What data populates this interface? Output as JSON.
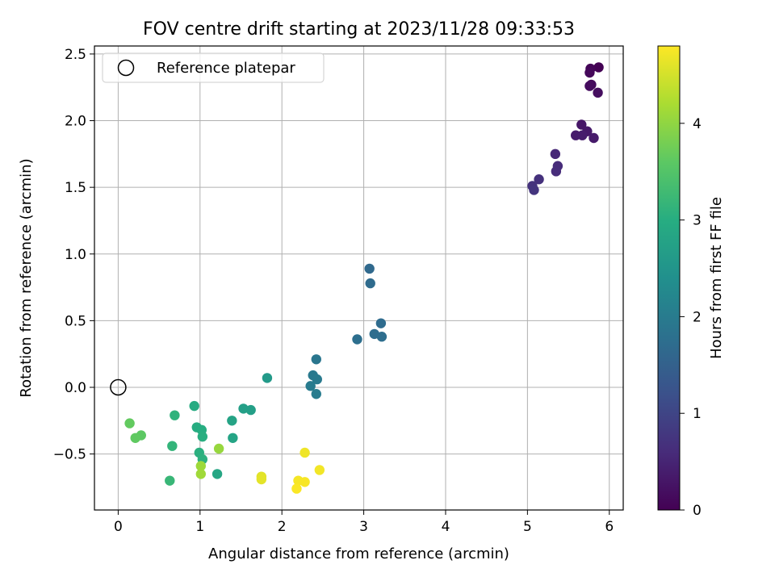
{
  "chart_data": {
    "type": "scatter",
    "title": "FOV centre drift starting at 2023/11/28 09:33:53",
    "xlabel": "Angular distance from reference (arcmin)",
    "ylabel": "Rotation from reference (arcmin)",
    "xlim": [
      -0.29,
      6.17
    ],
    "ylim": [
      -0.92,
      2.56
    ],
    "xticks": [
      0,
      1,
      2,
      3,
      4,
      5,
      6
    ],
    "yticks": [
      -0.5,
      0.0,
      0.5,
      1.0,
      1.5,
      2.0,
      2.5
    ],
    "xtick_labels": [
      "0",
      "1",
      "2",
      "3",
      "4",
      "5",
      "6"
    ],
    "ytick_labels": [
      "−0.5",
      "0.0",
      "0.5",
      "1.0",
      "1.5",
      "2.0",
      "2.5"
    ],
    "grid": true,
    "legend": {
      "placement": "top-left",
      "entries": [
        "Reference platepar"
      ]
    },
    "reference_point": {
      "x": 0.0,
      "y": 0.0
    },
    "colorbar": {
      "label": "Hours from first FF file",
      "colormap": "viridis",
      "range": [
        0,
        4.8
      ],
      "ticks": [
        0,
        1,
        2,
        3,
        4
      ],
      "tick_labels": [
        "0",
        "1",
        "2",
        "3",
        "4"
      ]
    },
    "points": [
      {
        "x": 5.87,
        "y": 2.4,
        "c": 0.0
      },
      {
        "x": 5.77,
        "y": 2.39,
        "c": 0.05
      },
      {
        "x": 5.76,
        "y": 2.36,
        "c": 0.1
      },
      {
        "x": 5.78,
        "y": 2.27,
        "c": 0.12
      },
      {
        "x": 5.76,
        "y": 2.26,
        "c": 0.15
      },
      {
        "x": 5.86,
        "y": 2.21,
        "c": 0.18
      },
      {
        "x": 5.66,
        "y": 1.97,
        "c": 0.3
      },
      {
        "x": 5.73,
        "y": 1.92,
        "c": 0.33
      },
      {
        "x": 5.59,
        "y": 1.89,
        "c": 0.36
      },
      {
        "x": 5.67,
        "y": 1.89,
        "c": 0.38
      },
      {
        "x": 5.81,
        "y": 1.87,
        "c": 0.35
      },
      {
        "x": 5.34,
        "y": 1.75,
        "c": 0.55
      },
      {
        "x": 5.37,
        "y": 1.66,
        "c": 0.6
      },
      {
        "x": 5.35,
        "y": 1.62,
        "c": 0.62
      },
      {
        "x": 5.14,
        "y": 1.56,
        "c": 0.68
      },
      {
        "x": 5.06,
        "y": 1.51,
        "c": 0.72
      },
      {
        "x": 5.08,
        "y": 1.48,
        "c": 0.74
      },
      {
        "x": 3.07,
        "y": 0.89,
        "c": 1.65
      },
      {
        "x": 3.08,
        "y": 0.78,
        "c": 1.68
      },
      {
        "x": 3.21,
        "y": 0.48,
        "c": 1.7
      },
      {
        "x": 3.13,
        "y": 0.4,
        "c": 1.72
      },
      {
        "x": 3.22,
        "y": 0.38,
        "c": 1.74
      },
      {
        "x": 2.92,
        "y": 0.36,
        "c": 1.76
      },
      {
        "x": 2.42,
        "y": 0.21,
        "c": 1.9
      },
      {
        "x": 2.38,
        "y": 0.09,
        "c": 1.95
      },
      {
        "x": 2.43,
        "y": 0.06,
        "c": 1.98
      },
      {
        "x": 2.35,
        "y": 0.01,
        "c": 2.0
      },
      {
        "x": 2.42,
        "y": -0.05,
        "c": 2.02
      },
      {
        "x": 1.82,
        "y": 0.07,
        "c": 2.6
      },
      {
        "x": 1.53,
        "y": -0.16,
        "c": 2.7
      },
      {
        "x": 1.62,
        "y": -0.17,
        "c": 2.72
      },
      {
        "x": 1.39,
        "y": -0.25,
        "c": 2.8
      },
      {
        "x": 1.4,
        "y": -0.38,
        "c": 2.82
      },
      {
        "x": 1.21,
        "y": -0.65,
        "c": 2.85
      },
      {
        "x": 0.93,
        "y": -0.14,
        "c": 2.95
      },
      {
        "x": 0.96,
        "y": -0.3,
        "c": 2.98
      },
      {
        "x": 1.02,
        "y": -0.32,
        "c": 3.0
      },
      {
        "x": 1.03,
        "y": -0.37,
        "c": 3.02
      },
      {
        "x": 0.99,
        "y": -0.49,
        "c": 3.05
      },
      {
        "x": 1.03,
        "y": -0.54,
        "c": 3.07
      },
      {
        "x": 0.69,
        "y": -0.21,
        "c": 3.1
      },
      {
        "x": 0.66,
        "y": -0.44,
        "c": 3.15
      },
      {
        "x": 0.63,
        "y": -0.7,
        "c": 3.2
      },
      {
        "x": 0.28,
        "y": -0.36,
        "c": 3.6
      },
      {
        "x": 0.21,
        "y": -0.38,
        "c": 3.62
      },
      {
        "x": 0.14,
        "y": -0.27,
        "c": 3.65
      },
      {
        "x": 1.23,
        "y": -0.46,
        "c": 4.05
      },
      {
        "x": 1.01,
        "y": -0.59,
        "c": 4.1
      },
      {
        "x": 1.01,
        "y": -0.65,
        "c": 4.12
      },
      {
        "x": 1.75,
        "y": -0.67,
        "c": 4.6
      },
      {
        "x": 1.75,
        "y": -0.69,
        "c": 4.62
      },
      {
        "x": 2.28,
        "y": -0.49,
        "c": 4.7
      },
      {
        "x": 2.46,
        "y": -0.62,
        "c": 4.72
      },
      {
        "x": 2.2,
        "y": -0.7,
        "c": 4.74
      },
      {
        "x": 2.28,
        "y": -0.71,
        "c": 4.76
      },
      {
        "x": 2.18,
        "y": -0.76,
        "c": 4.78
      }
    ]
  }
}
